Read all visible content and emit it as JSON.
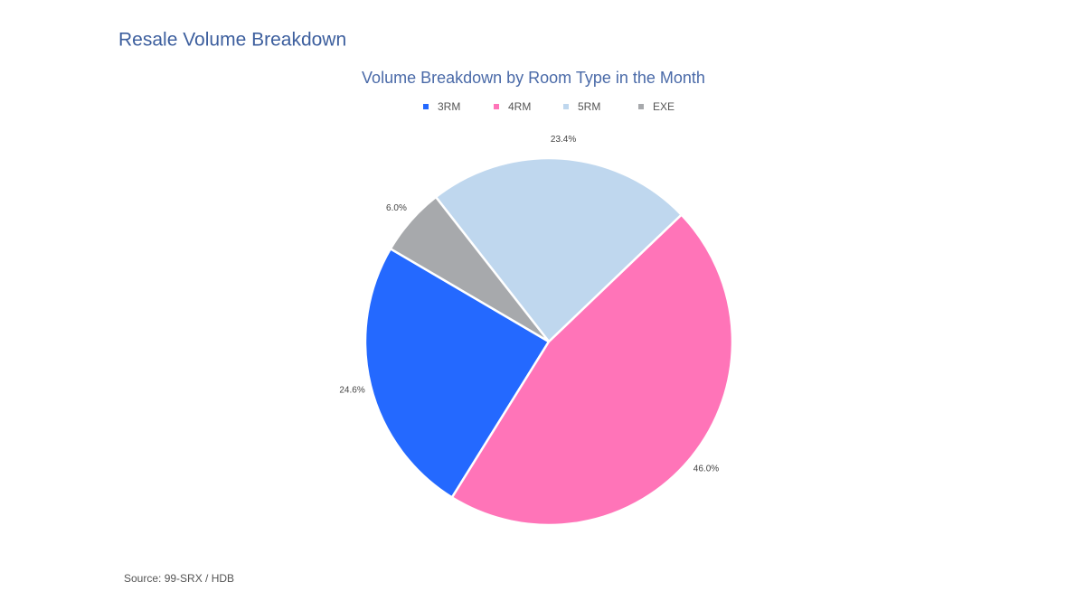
{
  "header": {
    "title": "Resale Volume Breakdown"
  },
  "chart_data": {
    "type": "pie",
    "title": "Volume Breakdown by Room Type in the Month",
    "categories": [
      "3RM",
      "4RM",
      "5RM",
      "EXE"
    ],
    "values": [
      24.6,
      46.0,
      23.4,
      6.0
    ],
    "value_labels": [
      "24.6%",
      "46.0%",
      "23.4%",
      "6.0%"
    ],
    "colors": [
      "#2469ff",
      "#ff74b8",
      "#bfd7ee",
      "#a7a9ac"
    ]
  },
  "footer": {
    "source": "Source: 99-SRX / HDB"
  }
}
